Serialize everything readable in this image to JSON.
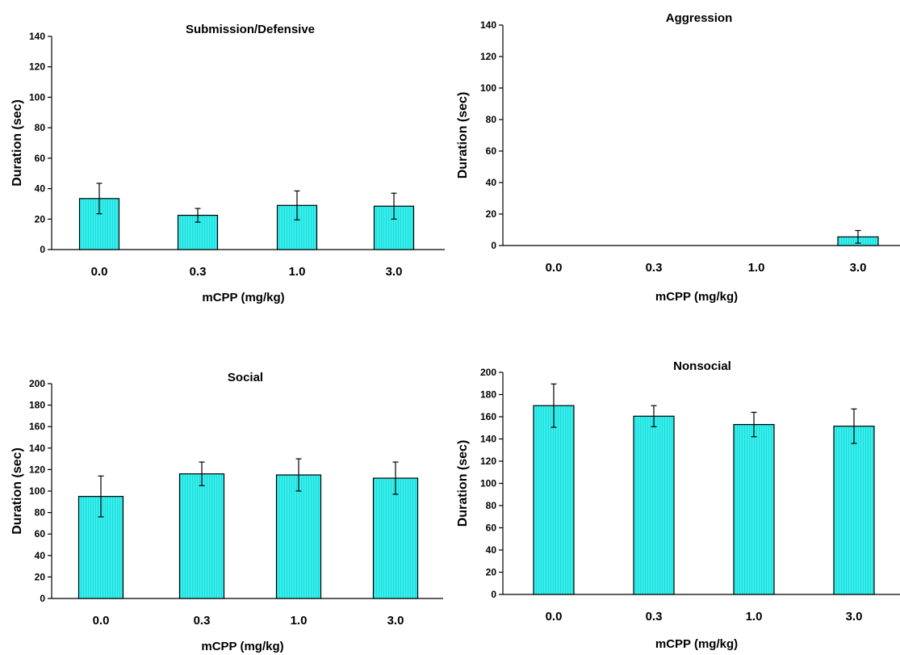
{
  "chart_data": [
    {
      "type": "bar",
      "title": "Submission/Defensive",
      "xlabel": "mCPP (mg/kg)",
      "ylabel": "Duration (sec)",
      "categories": [
        "0.0",
        "0.3",
        "1.0",
        "3.0"
      ],
      "values": [
        33.5,
        22.5,
        29,
        28.5
      ],
      "errors": [
        10,
        4.5,
        9.5,
        8.5
      ],
      "ylim": [
        0,
        140
      ],
      "yticks": [
        0,
        20,
        40,
        60,
        80,
        100,
        120,
        140
      ],
      "grid": false,
      "bar_color": "#33f0ee"
    },
    {
      "type": "bar",
      "title": "Aggression",
      "xlabel": "mCPP (mg/kg)",
      "ylabel": "Duration (sec)",
      "categories": [
        "0.0",
        "0.3",
        "1.0",
        "3.0"
      ],
      "values": [
        0,
        0,
        0,
        5.5
      ],
      "errors": [
        0,
        0,
        0,
        4
      ],
      "ylim": [
        0,
        140
      ],
      "yticks": [
        0,
        20,
        40,
        60,
        80,
        100,
        120,
        140
      ],
      "grid": false,
      "bar_color": "#33f0ee"
    },
    {
      "type": "bar",
      "title": "Social",
      "xlabel": "mCPP (mg/kg)",
      "ylabel": "Duration (sec)",
      "categories": [
        "0.0",
        "0.3",
        "1.0",
        "3.0"
      ],
      "values": [
        95,
        116,
        115,
        112
      ],
      "errors": [
        19,
        11,
        15,
        15
      ],
      "ylim": [
        0,
        200
      ],
      "yticks": [
        0,
        20,
        40,
        60,
        80,
        100,
        120,
        140,
        160,
        180,
        200
      ],
      "grid": false,
      "bar_color": "#33f0ee"
    },
    {
      "type": "bar",
      "title": "Nonsocial",
      "xlabel": "mCPP (mg/kg)",
      "ylabel": "Duration (sec)",
      "categories": [
        "0.0",
        "0.3",
        "1.0",
        "3.0"
      ],
      "values": [
        170,
        160.5,
        153,
        151.5
      ],
      "errors": [
        19.5,
        9.5,
        11,
        15.5
      ],
      "ylim": [
        0,
        200
      ],
      "yticks": [
        0,
        20,
        40,
        60,
        80,
        100,
        120,
        140,
        160,
        180,
        200
      ],
      "grid": false,
      "bar_color": "#33f0ee"
    }
  ]
}
